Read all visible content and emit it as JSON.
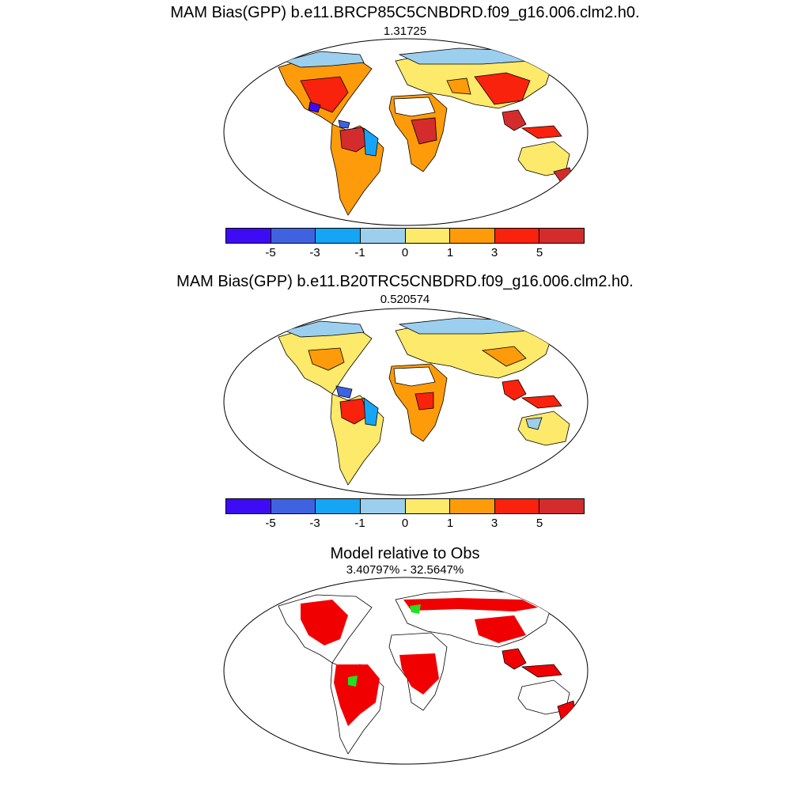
{
  "panels": [
    {
      "title": "MAM Bias(GPP) b.e11.BRCP85C5CNBDRD.f09_g16.006.clm2.h0.",
      "value": "1.31725"
    },
    {
      "title": "MAM Bias(GPP) b.e11.B20TRC5CNBDRD.f09_g16.006.clm2.h0.",
      "value": "0.520574"
    },
    {
      "title": "Model relative to Obs",
      "value": "3.40797% - 32.5647%"
    }
  ],
  "colorbar": {
    "labels": [
      "-5",
      "-3",
      "-1",
      "0",
      "1",
      "3",
      "5"
    ],
    "colors": [
      "#3d0cf5",
      "#3f63e0",
      "#16a5f5",
      "#9ccfee",
      "#fde96a",
      "#fd9b0a",
      "#f9220d",
      "#d42c2c"
    ]
  },
  "colors": {
    "land_outline": "#000000",
    "ocean": "#ffffff",
    "relative_red": "#f00000",
    "relative_green": "#22e022"
  }
}
